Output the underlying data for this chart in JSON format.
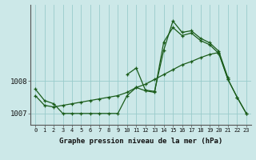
{
  "xlabel": "Graphe pression niveau de la mer (hPa)",
  "bg_color": "#cce8e8",
  "grid_color": "#99cccc",
  "line_color": "#1a5c1a",
  "hours": [
    0,
    1,
    2,
    3,
    4,
    5,
    6,
    7,
    8,
    9,
    10,
    11,
    12,
    13,
    14,
    15,
    16,
    17,
    18,
    19,
    20,
    21,
    22,
    23
  ],
  "series1": [
    1007.55,
    1007.25,
    1007.2,
    1007.25,
    1007.3,
    1007.35,
    1007.4,
    1007.45,
    1007.5,
    1007.55,
    1007.65,
    1007.8,
    1007.9,
    1008.05,
    1008.2,
    1008.35,
    1008.5,
    1008.6,
    1008.72,
    1008.82,
    1008.88,
    1008.05,
    1007.5,
    1007.0
  ],
  "series2": [
    1007.75,
    1007.4,
    1007.3,
    1007.0,
    1007.0,
    1007.0,
    1007.0,
    1007.0,
    1007.0,
    1007.0,
    1007.55,
    1007.8,
    1007.7,
    1007.65,
    1009.2,
    1009.65,
    1009.4,
    1009.48,
    1009.25,
    1009.12,
    1008.85,
    1008.05,
    1007.5,
    1007.0
  ],
  "series3": [
    null,
    null,
    null,
    null,
    null,
    null,
    null,
    null,
    null,
    null,
    1008.2,
    1008.4,
    1007.72,
    1007.68,
    1008.95,
    1009.85,
    1009.5,
    1009.55,
    1009.32,
    1009.18,
    1008.92,
    1008.1,
    null,
    null
  ],
  "ylim": [
    1006.65,
    1010.35
  ],
  "yticks": [
    1007,
    1008
  ],
  "figsize": [
    3.2,
    2.0
  ],
  "dpi": 100
}
